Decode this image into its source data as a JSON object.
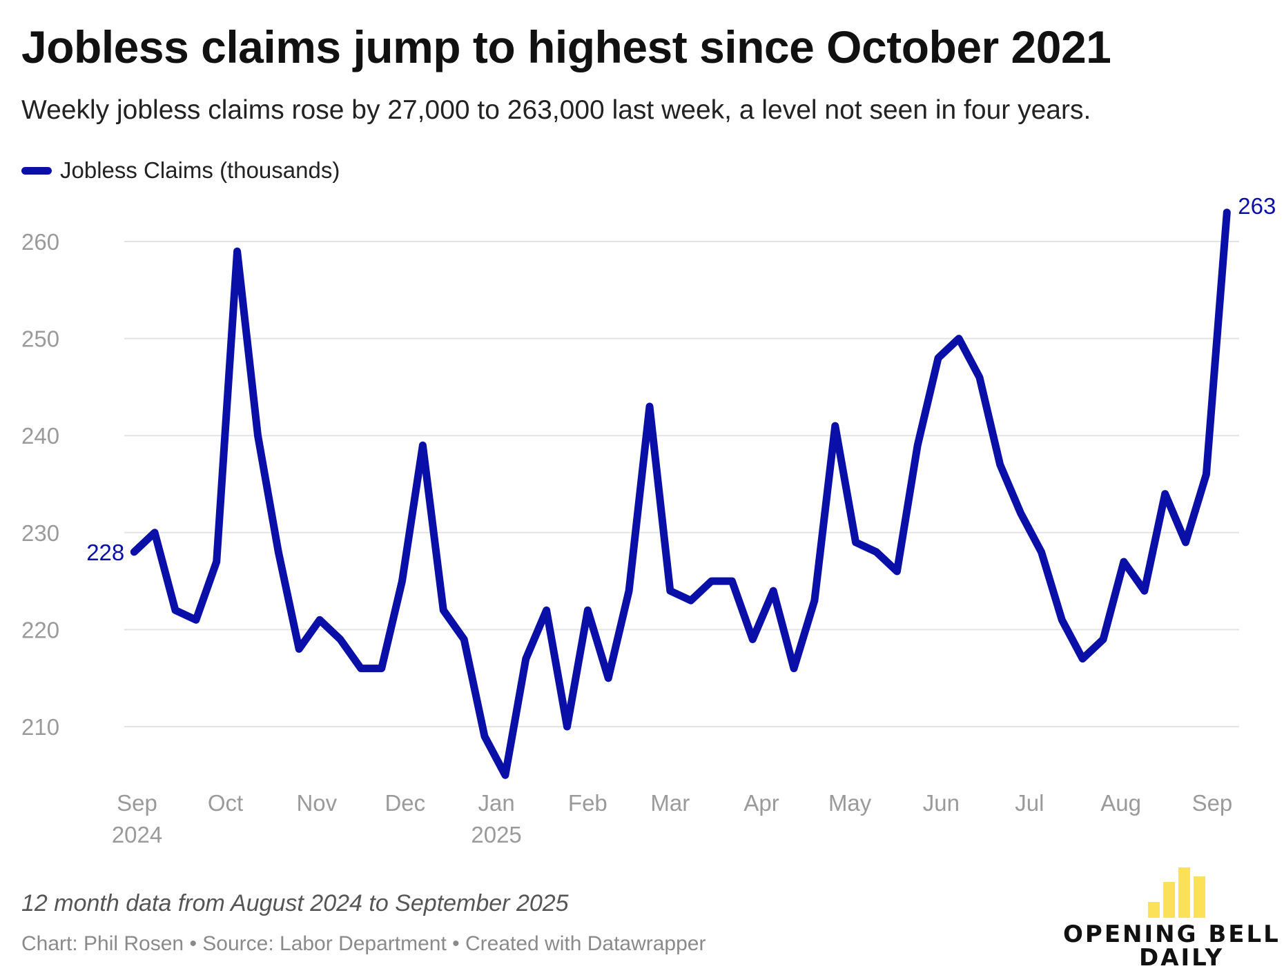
{
  "header": {
    "title": "Jobless claims jump to highest since October 2021",
    "subtitle": "Weekly jobless claims rose by 27,000 to 263,000 last week, a level not seen in four years."
  },
  "colors": {
    "series": "#0a0fa8",
    "grid": "#e3e3e3",
    "axis_text": "#9a9a9a",
    "logo_yellow": "#fbe05a"
  },
  "footer": {
    "note": "12 month data from August 2024 to September 2025",
    "source": "Chart: Phil Rosen • Source: Labor Department • Created with Datawrapper"
  },
  "brand": {
    "line1": "OPENING BELL",
    "line2": "DAILY"
  },
  "chart_data": {
    "type": "line",
    "title": "Jobless claims jump to highest since October 2021",
    "subtitle": "Weekly jobless claims rose by 27,000 to 263,000 last week, a level not seen in four years.",
    "xlabel": "",
    "ylabel": "",
    "ylim": [
      205,
      263
    ],
    "yticks": [
      210,
      220,
      230,
      240,
      250,
      260
    ],
    "grid": true,
    "legend_position": "top-left",
    "x_range": [
      "2024-08-30",
      "2025-09-05"
    ],
    "x_tick_labels": [
      {
        "date": "2024-09-01",
        "label": "Sep",
        "year": "2024"
      },
      {
        "date": "2024-10-01",
        "label": "Oct",
        "year": ""
      },
      {
        "date": "2024-11-01",
        "label": "Nov",
        "year": ""
      },
      {
        "date": "2024-12-01",
        "label": "Dec",
        "year": ""
      },
      {
        "date": "2025-01-01",
        "label": "Jan",
        "year": "2025"
      },
      {
        "date": "2025-02-01",
        "label": "Feb",
        "year": ""
      },
      {
        "date": "2025-03-01",
        "label": "Mar",
        "year": ""
      },
      {
        "date": "2025-04-01",
        "label": "Apr",
        "year": ""
      },
      {
        "date": "2025-05-01",
        "label": "May",
        "year": ""
      },
      {
        "date": "2025-06-01",
        "label": "Jun",
        "year": ""
      },
      {
        "date": "2025-07-01",
        "label": "Jul",
        "year": ""
      },
      {
        "date": "2025-08-01",
        "label": "Aug",
        "year": ""
      },
      {
        "date": "2025-09-01",
        "label": "Sep",
        "year": ""
      }
    ],
    "series": [
      {
        "name": "Jobless Claims (thousands)",
        "color": "#0a0fa8",
        "start_label": "228",
        "end_label": "263",
        "points": [
          {
            "x": "2024-08-31",
            "y": 228
          },
          {
            "x": "2024-09-07",
            "y": 230
          },
          {
            "x": "2024-09-14",
            "y": 222
          },
          {
            "x": "2024-09-21",
            "y": 221
          },
          {
            "x": "2024-09-28",
            "y": 227
          },
          {
            "x": "2024-10-05",
            "y": 259
          },
          {
            "x": "2024-10-12",
            "y": 240
          },
          {
            "x": "2024-10-19",
            "y": 228
          },
          {
            "x": "2024-10-26",
            "y": 218
          },
          {
            "x": "2024-11-02",
            "y": 221
          },
          {
            "x": "2024-11-09",
            "y": 219
          },
          {
            "x": "2024-11-16",
            "y": 216
          },
          {
            "x": "2024-11-23",
            "y": 216
          },
          {
            "x": "2024-11-30",
            "y": 225
          },
          {
            "x": "2024-12-07",
            "y": 239
          },
          {
            "x": "2024-12-14",
            "y": 222
          },
          {
            "x": "2024-12-21",
            "y": 219
          },
          {
            "x": "2024-12-28",
            "y": 209
          },
          {
            "x": "2025-01-04",
            "y": 205
          },
          {
            "x": "2025-01-11",
            "y": 217
          },
          {
            "x": "2025-01-18",
            "y": 222
          },
          {
            "x": "2025-01-25",
            "y": 210
          },
          {
            "x": "2025-02-01",
            "y": 222
          },
          {
            "x": "2025-02-08",
            "y": 215
          },
          {
            "x": "2025-02-15",
            "y": 224
          },
          {
            "x": "2025-02-22",
            "y": 243
          },
          {
            "x": "2025-03-01",
            "y": 224
          },
          {
            "x": "2025-03-08",
            "y": 223
          },
          {
            "x": "2025-03-15",
            "y": 225
          },
          {
            "x": "2025-03-22",
            "y": 225
          },
          {
            "x": "2025-03-29",
            "y": 219
          },
          {
            "x": "2025-04-05",
            "y": 224
          },
          {
            "x": "2025-04-12",
            "y": 216
          },
          {
            "x": "2025-04-19",
            "y": 223
          },
          {
            "x": "2025-04-26",
            "y": 241
          },
          {
            "x": "2025-05-03",
            "y": 229
          },
          {
            "x": "2025-05-10",
            "y": 228
          },
          {
            "x": "2025-05-17",
            "y": 226
          },
          {
            "x": "2025-05-24",
            "y": 239
          },
          {
            "x": "2025-05-31",
            "y": 248
          },
          {
            "x": "2025-06-07",
            "y": 250
          },
          {
            "x": "2025-06-14",
            "y": 246
          },
          {
            "x": "2025-06-21",
            "y": 237
          },
          {
            "x": "2025-06-28",
            "y": 232
          },
          {
            "x": "2025-07-05",
            "y": 228
          },
          {
            "x": "2025-07-12",
            "y": 221
          },
          {
            "x": "2025-07-19",
            "y": 217
          },
          {
            "x": "2025-07-26",
            "y": 219
          },
          {
            "x": "2025-08-02",
            "y": 227
          },
          {
            "x": "2025-08-09",
            "y": 224
          },
          {
            "x": "2025-08-16",
            "y": 234
          },
          {
            "x": "2025-08-23",
            "y": 229
          },
          {
            "x": "2025-08-30",
            "y": 236
          },
          {
            "x": "2025-09-06",
            "y": 263
          }
        ]
      }
    ]
  }
}
